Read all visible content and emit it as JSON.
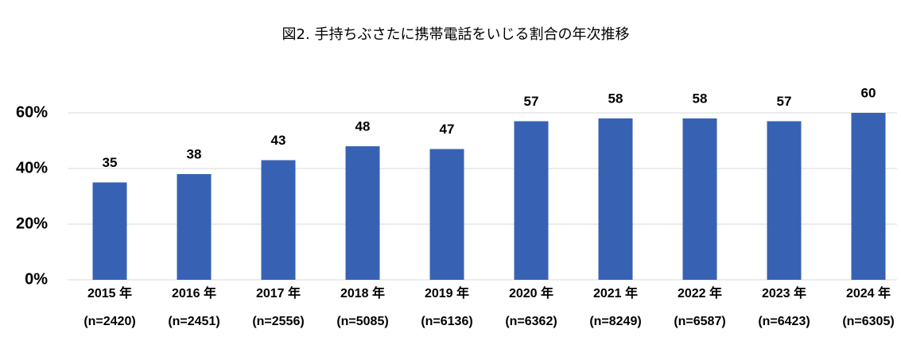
{
  "chart_data": {
    "type": "bar",
    "title": "図2. 手持ちぶさたに携帯電話をいじる割合の年次推移",
    "categories": [
      "2015 年",
      "2016 年",
      "2017 年",
      "2018 年",
      "2019 年",
      "2020 年",
      "2021 年",
      "2022 年",
      "2023 年",
      "2024 年"
    ],
    "sample_sizes": [
      "(n=2420)",
      "(n=2451)",
      "(n=2556)",
      "(n=5085)",
      "(n=6136)",
      "(n=6362)",
      "(n=8249)",
      "(n=6587)",
      "(n=6423)",
      "(n=6305)"
    ],
    "values": [
      35,
      38,
      43,
      48,
      47,
      57,
      58,
      58,
      57,
      60
    ],
    "color": "#3762b4",
    "ylim": [
      0,
      60
    ],
    "yticks": [
      {
        "value": 0,
        "label": "0%"
      },
      {
        "value": 20,
        "label": "20%"
      },
      {
        "value": 40,
        "label": "40%"
      },
      {
        "value": 60,
        "label": "60%"
      }
    ],
    "grid": true
  }
}
